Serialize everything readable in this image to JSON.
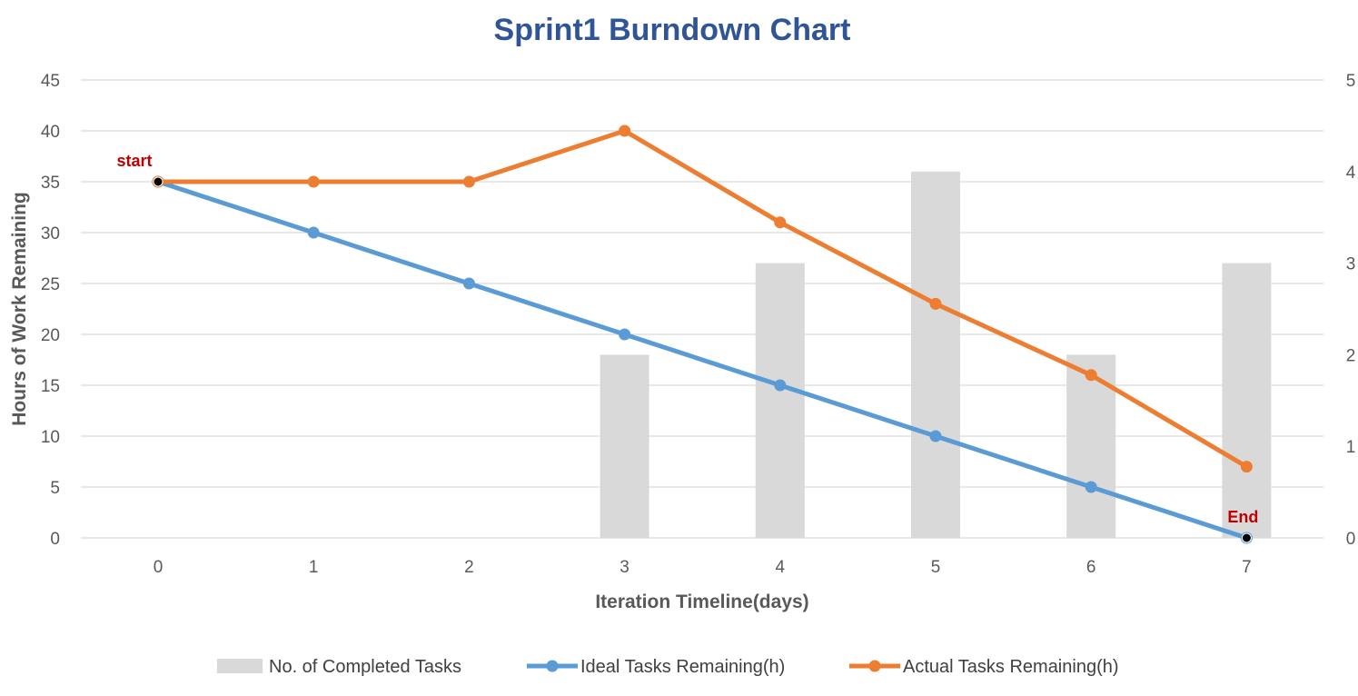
{
  "chart_data": {
    "type": "line",
    "title": "Sprint1 Burndown Chart",
    "xlabel": "Iteration Timeline(days)",
    "ylabel": "Hours of Work Remaining",
    "x": [
      0,
      1,
      2,
      3,
      4,
      5,
      6,
      7
    ],
    "xlim": [
      0,
      7
    ],
    "ylim": [
      0,
      45
    ],
    "y_ticks": [
      0,
      5,
      10,
      15,
      20,
      25,
      30,
      35,
      40,
      45
    ],
    "y2lim": [
      0,
      5
    ],
    "y2_ticks": [
      0,
      1,
      2,
      3,
      4,
      5
    ],
    "grid": true,
    "legend_position": "bottom",
    "series": [
      {
        "name": "No. of Completed Tasks",
        "type": "bar",
        "axis": "secondary",
        "color": "#d9d9d9",
        "values": [
          0,
          0,
          0,
          2,
          3,
          4,
          2,
          3
        ]
      },
      {
        "name": "Ideal Tasks Remaining(h)",
        "type": "line",
        "axis": "primary",
        "color": "#5b9bd5",
        "values": [
          35,
          30,
          25,
          20,
          15,
          10,
          5,
          0
        ]
      },
      {
        "name": "Actual Tasks Remaining(h)",
        "type": "line",
        "axis": "primary",
        "color": "#ed7d31",
        "values": [
          35,
          35,
          35,
          40,
          31,
          23,
          16,
          7
        ]
      }
    ],
    "annotations": [
      {
        "text": "start",
        "x": 0,
        "y": 35
      },
      {
        "text": "End",
        "x": 7,
        "y": 0
      }
    ],
    "colors": {
      "title": "#2f5597",
      "annotation": "#c00000",
      "marker_highlight": "#000000",
      "grid": "#d9d9d9"
    }
  }
}
